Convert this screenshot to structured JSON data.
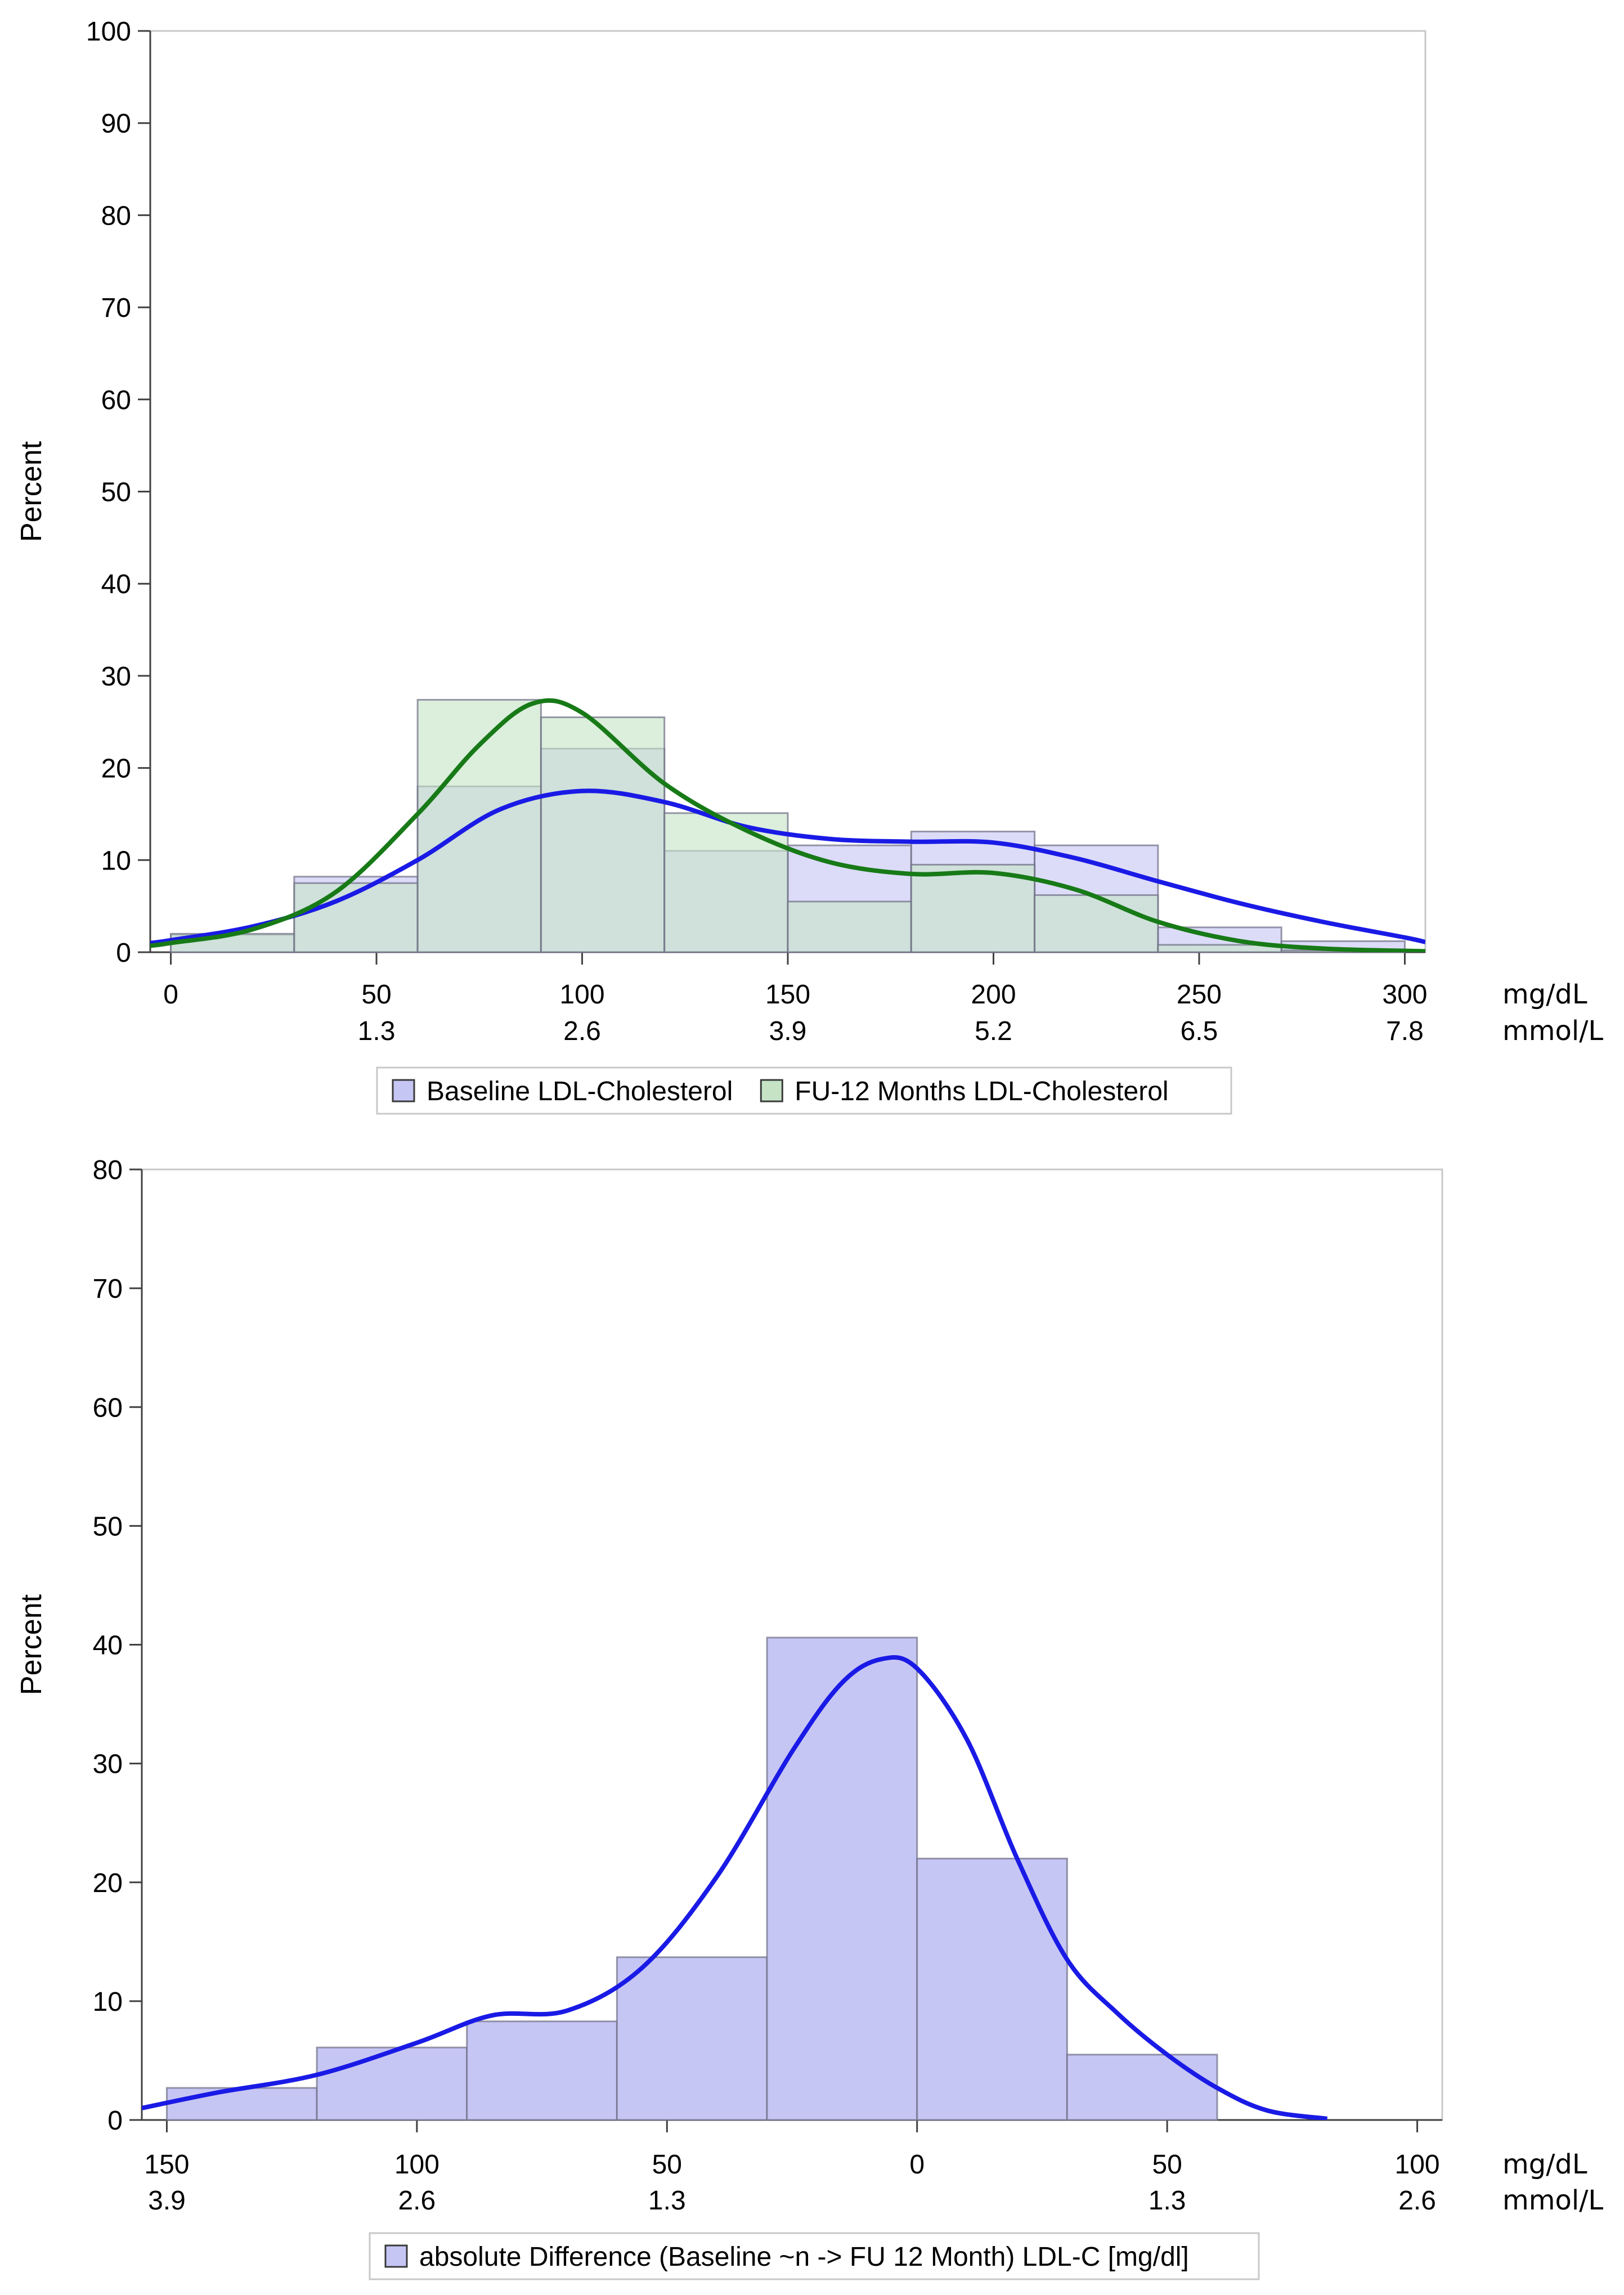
{
  "chart_data": [
    {
      "type": "bar",
      "subtype": "overlaid-histogram-with-density",
      "ylabel": "Percent",
      "ylim": [
        0,
        100
      ],
      "yticks": [
        0,
        10,
        20,
        30,
        40,
        50,
        60,
        70,
        80,
        90,
        100
      ],
      "xlim": [
        -5,
        305
      ],
      "xticks": [
        {
          "value": 0,
          "label": "0",
          "sub": ""
        },
        {
          "value": 50,
          "label": "50",
          "sub": "1.3"
        },
        {
          "value": 100,
          "label": "100",
          "sub": "2.6"
        },
        {
          "value": 150,
          "label": "150",
          "sub": "3.9"
        },
        {
          "value": 200,
          "label": "200",
          "sub": "5.2"
        },
        {
          "value": 250,
          "label": "250",
          "sub": "6.5"
        },
        {
          "value": 300,
          "label": "300",
          "sub": "7.8"
        }
      ],
      "unit_primary": "mg/dL",
      "unit_secondary": "mmol/L",
      "bin_edges": [
        0,
        30,
        60,
        90,
        120,
        150,
        180,
        210,
        240,
        270,
        300
      ],
      "series": [
        {
          "name": "Baseline LDL-Cholesterol",
          "bar_color": "#c6c6f5",
          "line_color": "#1a1ae6",
          "values": [
            1.9,
            8.2,
            18.0,
            22.1,
            11.0,
            11.6,
            13.1,
            11.6,
            2.7,
            1.2
          ],
          "density": [
            [
              -5,
              1.0
            ],
            [
              0,
              1.3
            ],
            [
              20,
              2.8
            ],
            [
              40,
              5.5
            ],
            [
              60,
              10.0
            ],
            [
              80,
              15.5
            ],
            [
              100,
              17.5
            ],
            [
              120,
              16.3
            ],
            [
              140,
              13.6
            ],
            [
              160,
              12.3
            ],
            [
              180,
              12.0
            ],
            [
              200,
              11.9
            ],
            [
              220,
              10.2
            ],
            [
              240,
              7.7
            ],
            [
              260,
              5.3
            ],
            [
              280,
              3.3
            ],
            [
              300,
              1.6
            ],
            [
              305,
              1.1
            ]
          ]
        },
        {
          "name": "FU-12 Months LDL-Cholesterol",
          "bar_color": "#c6e3c6",
          "line_color": "#177a17",
          "values": [
            2.0,
            7.5,
            27.4,
            25.5,
            15.1,
            5.5,
            9.5,
            6.2,
            0.8,
            0.2
          ],
          "density": [
            [
              -5,
              0.7
            ],
            [
              0,
              1.0
            ],
            [
              20,
              2.5
            ],
            [
              40,
              6.5
            ],
            [
              60,
              15.0
            ],
            [
              75,
              22.5
            ],
            [
              88,
              27.0
            ],
            [
              100,
              26.0
            ],
            [
              120,
              18.3
            ],
            [
              140,
              13.2
            ],
            [
              160,
              9.8
            ],
            [
              180,
              8.5
            ],
            [
              200,
              8.6
            ],
            [
              220,
              6.8
            ],
            [
              240,
              3.3
            ],
            [
              260,
              1.2
            ],
            [
              280,
              0.4
            ],
            [
              305,
              0.1
            ]
          ]
        }
      ]
    },
    {
      "type": "bar",
      "subtype": "histogram-with-density",
      "ylabel": "Percent",
      "ylim": [
        0,
        80
      ],
      "yticks": [
        0,
        10,
        20,
        30,
        40,
        50,
        60,
        70,
        80
      ],
      "xlim": [
        -155,
        105
      ],
      "xticks": [
        {
          "value": -150,
          "label": "150",
          "sub": "3.9"
        },
        {
          "value": -100,
          "label": "100",
          "sub": "2.6"
        },
        {
          "value": -50,
          "label": "50",
          "sub": "1.3"
        },
        {
          "value": 0,
          "label": "0",
          "sub": ""
        },
        {
          "value": 50,
          "label": "50",
          "sub": "1.3"
        },
        {
          "value": 100,
          "label": "100",
          "sub": "2.6"
        }
      ],
      "unit_primary": "mg/dL",
      "unit_secondary": "mmol/L",
      "bin_edges": [
        -150,
        -120,
        -90,
        -60,
        -30,
        0,
        30,
        60
      ],
      "series": [
        {
          "name": "absolute Difference (Baseline ~n -> FU 12 Month) LDL-C [mg/dl]",
          "bar_color": "#c6c6f5",
          "line_color": "#1a1ae6",
          "values": [
            2.7,
            6.1,
            8.3,
            13.7,
            40.6,
            22.0,
            5.5
          ],
          "density": [
            [
              -155,
              1.0
            ],
            [
              -140,
              2.3
            ],
            [
              -120,
              3.8
            ],
            [
              -100,
              6.5
            ],
            [
              -85,
              8.8
            ],
            [
              -70,
              9.2
            ],
            [
              -55,
              12.8
            ],
            [
              -40,
              20.5
            ],
            [
              -25,
              31.0
            ],
            [
              -15,
              36.8
            ],
            [
              -7,
              38.8
            ],
            [
              0,
              38.0
            ],
            [
              10,
              32.0
            ],
            [
              20,
              22.0
            ],
            [
              30,
              13.5
            ],
            [
              40,
              9.0
            ],
            [
              50,
              5.5
            ],
            [
              60,
              2.7
            ],
            [
              70,
              0.8
            ],
            [
              82,
              0.1
            ]
          ]
        }
      ]
    }
  ]
}
